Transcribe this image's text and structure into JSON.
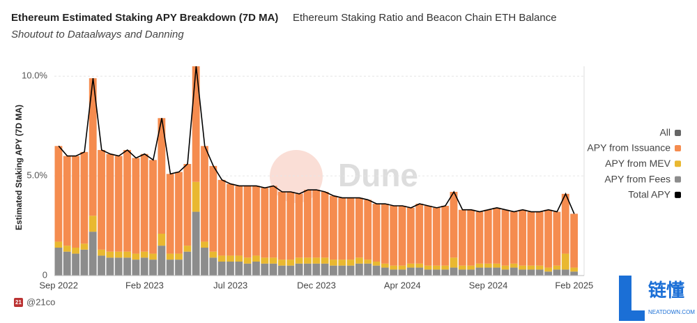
{
  "chart_data": {
    "type": "bar",
    "stacked": true,
    "title": "Ethereum Estimated Staking APY Breakdown (7D MA)",
    "tab": "Ethereum Staking Ratio and Beacon Chain ETH Balance",
    "subtitle": "Shoutout to Dataalways and Danning",
    "y_label": "Estimated Staking APY (7D MA)",
    "legend_all": "All",
    "legend_position": "right",
    "watermark": "Dune",
    "footer": "@21co",
    "footer_badge": "21",
    "logo_text": "链懂",
    "logo_subtext": "NEATDOWN.COM",
    "grid": true,
    "ylim": [
      0,
      10.5
    ],
    "yticks": [
      0,
      {
        "value": 5,
        "label": "5.0%"
      },
      {
        "value": 10,
        "label": "10.0%"
      }
    ],
    "categories": [
      "Sep 2022",
      null,
      null,
      null,
      null,
      null,
      null,
      null,
      null,
      null,
      "Feb 2023",
      null,
      null,
      null,
      null,
      null,
      null,
      null,
      null,
      null,
      "Jul 2023",
      null,
      null,
      null,
      null,
      null,
      null,
      null,
      null,
      null,
      "Dec 2023",
      null,
      null,
      null,
      null,
      null,
      null,
      null,
      null,
      null,
      "Apr 2024",
      null,
      null,
      null,
      null,
      null,
      null,
      null,
      null,
      null,
      "Sep 2024",
      null,
      null,
      null,
      null,
      null,
      null,
      null,
      null,
      null,
      "Feb 2025"
    ],
    "series": [
      {
        "name": "APY from Fees",
        "color": "#8c8c8c",
        "values": [
          1.4,
          1.2,
          1.1,
          1.3,
          2.2,
          1.0,
          0.9,
          0.9,
          0.9,
          0.8,
          0.9,
          0.8,
          1.5,
          0.8,
          0.8,
          1.2,
          3.2,
          1.4,
          0.9,
          0.7,
          0.7,
          0.7,
          0.6,
          0.7,
          0.6,
          0.6,
          0.5,
          0.5,
          0.6,
          0.6,
          0.6,
          0.6,
          0.5,
          0.5,
          0.5,
          0.6,
          0.6,
          0.5,
          0.4,
          0.3,
          0.3,
          0.4,
          0.4,
          0.3,
          0.3,
          0.3,
          0.4,
          0.3,
          0.3,
          0.4,
          0.4,
          0.4,
          0.3,
          0.4,
          0.3,
          0.3,
          0.3,
          0.2,
          0.3,
          0.3,
          0.2
        ]
      },
      {
        "name": "APY from MEV",
        "color": "#e9b830",
        "values": [
          0.3,
          0.3,
          0.3,
          0.3,
          0.8,
          0.3,
          0.3,
          0.3,
          0.3,
          0.3,
          0.3,
          0.3,
          0.6,
          0.3,
          0.3,
          0.3,
          1.5,
          0.3,
          0.3,
          0.3,
          0.3,
          0.3,
          0.3,
          0.3,
          0.3,
          0.3,
          0.3,
          0.3,
          0.3,
          0.3,
          0.3,
          0.3,
          0.3,
          0.3,
          0.3,
          0.3,
          0.2,
          0.2,
          0.2,
          0.2,
          0.2,
          0.2,
          0.2,
          0.2,
          0.2,
          0.2,
          0.5,
          0.2,
          0.2,
          0.2,
          0.2,
          0.2,
          0.2,
          0.2,
          0.2,
          0.2,
          0.2,
          0.2,
          0.2,
          0.8,
          0.2
        ]
      },
      {
        "name": "APY from Issuance",
        "color": "#f58c4f",
        "values": [
          4.8,
          4.5,
          4.6,
          4.6,
          6.9,
          5.0,
          4.9,
          4.8,
          5.1,
          4.8,
          4.9,
          4.7,
          5.8,
          4.0,
          4.1,
          4.1,
          5.8,
          4.8,
          4.3,
          3.8,
          3.6,
          3.5,
          3.6,
          3.5,
          3.5,
          3.6,
          3.4,
          3.4,
          3.2,
          3.4,
          3.4,
          3.3,
          3.2,
          3.1,
          3.1,
          3.0,
          3.0,
          2.9,
          3.0,
          3.0,
          3.0,
          2.8,
          3.0,
          3.0,
          2.9,
          3.0,
          3.3,
          2.8,
          2.8,
          2.6,
          2.7,
          2.8,
          2.8,
          2.6,
          2.8,
          2.7,
          2.7,
          2.9,
          2.7,
          3.0,
          2.7
        ]
      },
      {
        "name": "Total APY",
        "color": "#000000",
        "type": "line",
        "values": [
          6.5,
          6.0,
          6.0,
          6.2,
          9.9,
          6.3,
          6.1,
          6.0,
          6.3,
          5.9,
          6.1,
          5.8,
          7.9,
          5.1,
          5.2,
          5.6,
          10.5,
          6.5,
          5.5,
          4.8,
          4.6,
          4.5,
          4.5,
          4.5,
          4.4,
          4.5,
          4.2,
          4.2,
          4.1,
          4.3,
          4.3,
          4.2,
          4.0,
          3.9,
          3.9,
          3.9,
          3.8,
          3.6,
          3.6,
          3.5,
          3.5,
          3.4,
          3.6,
          3.5,
          3.4,
          3.5,
          4.2,
          3.3,
          3.3,
          3.2,
          3.3,
          3.4,
          3.3,
          3.2,
          3.3,
          3.2,
          3.2,
          3.3,
          3.2,
          4.1,
          3.1
        ]
      }
    ]
  }
}
